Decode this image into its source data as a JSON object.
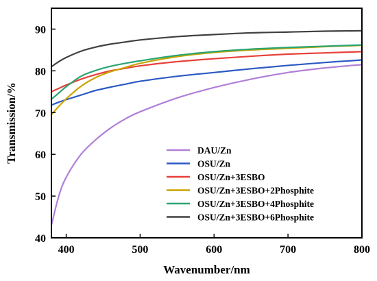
{
  "chart_data": {
    "type": "line",
    "title": "",
    "xlabel": "Wavenumber/nm",
    "ylabel": "Transmission/%",
    "xlim": [
      380,
      800
    ],
    "ylim": [
      40,
      95
    ],
    "xticks": [
      400,
      500,
      600,
      700,
      800
    ],
    "yticks": [
      40,
      50,
      60,
      70,
      80,
      90
    ],
    "legend_position": "lower-right",
    "grid": false,
    "x": [
      380,
      390,
      400,
      420,
      440,
      460,
      480,
      500,
      550,
      600,
      650,
      700,
      750,
      800
    ],
    "series": [
      {
        "name": "DAU/Zn",
        "color": "#b07fd8",
        "values": [
          43,
          50,
          54.5,
          60,
          63.5,
          66.3,
          68.5,
          70.2,
          73.5,
          76,
          78,
          79.6,
          80.7,
          81.5
        ]
      },
      {
        "name": "OSU/Zn",
        "color": "#2b59c3",
        "values": [
          71.8,
          72.5,
          73.1,
          74.2,
          75.3,
          76.1,
          76.8,
          77.5,
          78.7,
          79.6,
          80.5,
          81.3,
          82,
          82.6
        ]
      },
      {
        "name": "OSU/Zn+3ESBO",
        "color": "#e8403a",
        "values": [
          75,
          75.8,
          76.6,
          78,
          79.1,
          80,
          80.6,
          81.2,
          82.2,
          82.9,
          83.5,
          84,
          84.3,
          84.6
        ]
      },
      {
        "name": "OSU/Zn+3ESBO+2Phosphite",
        "color": "#c9a400",
        "values": [
          69.5,
          71.5,
          73.3,
          76.3,
          78.4,
          79.8,
          80.8,
          81.8,
          83.4,
          84.4,
          85,
          85.4,
          85.8,
          86.1
        ]
      },
      {
        "name": "OSU/Zn+3ESBO+4Phosphite",
        "color": "#2aa572",
        "values": [
          73.2,
          74.7,
          76.2,
          78.7,
          80.1,
          81.1,
          81.8,
          82.4,
          83.7,
          84.6,
          85.2,
          85.6,
          85.9,
          86.2
        ]
      },
      {
        "name": "OSU/Zn+3ESBO+6Phosphite",
        "color": "#404040",
        "values": [
          81,
          82.2,
          83.2,
          84.7,
          85.7,
          86.4,
          86.9,
          87.4,
          88.2,
          88.7,
          89.1,
          89.3,
          89.5,
          89.6
        ]
      }
    ]
  }
}
